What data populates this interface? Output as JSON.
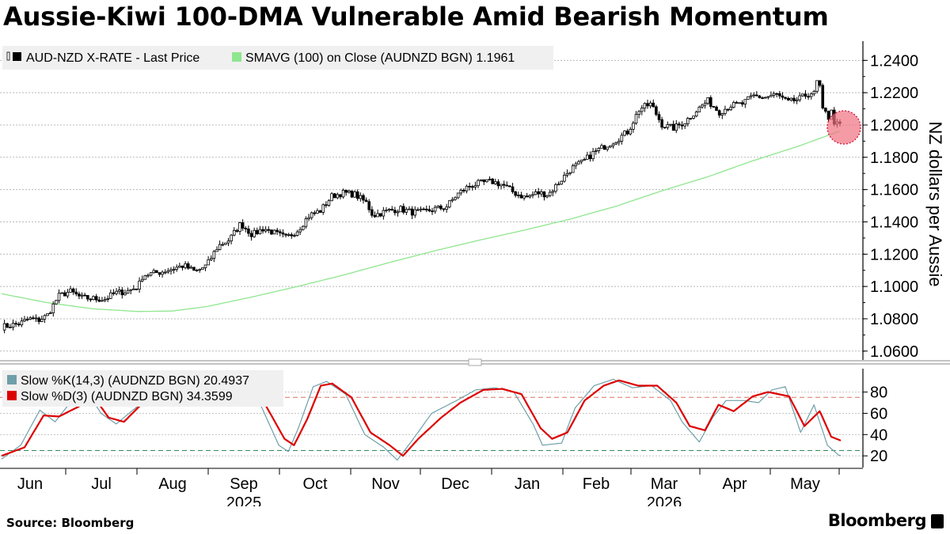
{
  "title": "Aussie-Kiwi 100-DMA Vulnerable Amid Bearish Momentum",
  "source": "Source: Bloomberg",
  "brand": "Bloomberg",
  "chart_data": [
    {
      "type": "candlestick",
      "ylabel": "NZ dollars per Aussie",
      "ylim": [
        1.0545,
        1.248
      ],
      "yticks": [
        "1.0600",
        "1.0800",
        "1.1000",
        "1.1200",
        "1.1400",
        "1.1600",
        "1.1800",
        "1.2000",
        "1.2200",
        "1.2400"
      ],
      "grid": true,
      "legend": "top-left",
      "colors": {
        "price": "#000000",
        "sma": "#8ee68e",
        "highlight": "#f07080"
      },
      "series": [
        {
          "name": "AUD-NZD X-RATE - Last Price",
          "anchors": [
            [
              0,
              1.075
            ],
            [
              8,
              1.077
            ],
            [
              12,
              1.08
            ],
            [
              16,
              1.079
            ],
            [
              20,
              1.082
            ],
            [
              25,
              1.094
            ],
            [
              30,
              1.097
            ],
            [
              35,
              1.093
            ],
            [
              45,
              1.092
            ],
            [
              50,
              1.096
            ],
            [
              55,
              1.097
            ],
            [
              60,
              1.1
            ],
            [
              62,
              1.107
            ],
            [
              70,
              1.109
            ],
            [
              75,
              1.111
            ],
            [
              80,
              1.113
            ],
            [
              85,
              1.109
            ],
            [
              90,
              1.113
            ],
            [
              95,
              1.125
            ],
            [
              100,
              1.129
            ],
            [
              105,
              1.139
            ],
            [
              110,
              1.132
            ],
            [
              115,
              1.136
            ],
            [
              120,
              1.133
            ],
            [
              125,
              1.13
            ],
            [
              130,
              1.135
            ],
            [
              135,
              1.144
            ],
            [
              140,
              1.147
            ],
            [
              145,
              1.156
            ],
            [
              150,
              1.158
            ],
            [
              155,
              1.157
            ],
            [
              160,
              1.152
            ],
            [
              163,
              1.144
            ],
            [
              170,
              1.147
            ],
            [
              175,
              1.148
            ],
            [
              180,
              1.146
            ],
            [
              185,
              1.146
            ],
            [
              190,
              1.148
            ],
            [
              195,
              1.149
            ],
            [
              200,
              1.157
            ],
            [
              205,
              1.162
            ],
            [
              210,
              1.164
            ],
            [
              215,
              1.165
            ],
            [
              220,
              1.163
            ],
            [
              225,
              1.158
            ],
            [
              230,
              1.155
            ],
            [
              235,
              1.158
            ],
            [
              240,
              1.157
            ],
            [
              245,
              1.165
            ],
            [
              250,
              1.173
            ],
            [
              255,
              1.177
            ],
            [
              260,
              1.183
            ],
            [
              265,
              1.187
            ],
            [
              270,
              1.191
            ],
            [
              275,
              1.196
            ],
            [
              280,
              1.21
            ],
            [
              285,
              1.213
            ],
            [
              290,
              1.2
            ],
            [
              295,
              1.198
            ],
            [
              300,
              1.202
            ],
            [
              305,
              1.209
            ],
            [
              310,
              1.215
            ],
            [
              315,
              1.208
            ],
            [
              320,
              1.212
            ],
            [
              325,
              1.213
            ],
            [
              330,
              1.218
            ],
            [
              335,
              1.217
            ],
            [
              340,
              1.219
            ],
            [
              345,
              1.214
            ],
            [
              350,
              1.216
            ],
            [
              355,
              1.22
            ],
            [
              360,
              1.218
            ],
            [
              362,
              1.225
            ],
            [
              364,
              1.21
            ],
            [
              366,
              1.203
            ],
            [
              368,
              1.2
            ]
          ],
          "last_value": ""
        },
        {
          "name": "SMAVG (100)  on Close (AUDNZD BGN) 1.1961",
          "anchors": [
            [
              0,
              1.0955
            ],
            [
              20,
              1.09
            ],
            [
              40,
              1.0862
            ],
            [
              60,
              1.0845
            ],
            [
              75,
              1.0848
            ],
            [
              90,
              1.0875
            ],
            [
              110,
              1.0935
            ],
            [
              130,
              1.1
            ],
            [
              150,
              1.107
            ],
            [
              170,
              1.1147
            ],
            [
              190,
              1.122
            ],
            [
              210,
              1.1287
            ],
            [
              230,
              1.135
            ],
            [
              250,
              1.1418
            ],
            [
              270,
              1.1497
            ],
            [
              290,
              1.1592
            ],
            [
              310,
              1.1678
            ],
            [
              330,
              1.1778
            ],
            [
              350,
              1.1868
            ],
            [
              368,
              1.1961
            ]
          ],
          "last_value": "1.1961"
        }
      ]
    },
    {
      "type": "line",
      "ylim": [
        9,
        102
      ],
      "yticks": [
        "20",
        "40",
        "60",
        "80"
      ],
      "reference_lines": [
        25,
        75
      ],
      "colors": {
        "k": "#6f9fa8",
        "d": "#dd0000"
      },
      "series": [
        {
          "name": "Slow %K(14,3) (AUDNZD BGN)",
          "last_value": "20.4937",
          "anchors": [
            [
              0,
              17
            ],
            [
              10,
              30
            ],
            [
              20,
              63
            ],
            [
              28,
              52
            ],
            [
              35,
              68
            ],
            [
              45,
              80
            ],
            [
              52,
              60
            ],
            [
              60,
              50
            ],
            [
              68,
              62
            ],
            [
              75,
              72
            ],
            [
              90,
              82
            ],
            [
              110,
              88
            ],
            [
              125,
              93
            ],
            [
              135,
              70
            ],
            [
              145,
              30
            ],
            [
              150,
              24
            ],
            [
              155,
              45
            ],
            [
              163,
              85
            ],
            [
              170,
              90
            ],
            [
              180,
              78
            ],
            [
              190,
              40
            ],
            [
              200,
              28
            ],
            [
              207,
              16
            ],
            [
              215,
              35
            ],
            [
              225,
              60
            ],
            [
              238,
              72
            ],
            [
              248,
              82
            ],
            [
              258,
              84
            ],
            [
              268,
              80
            ],
            [
              278,
              50
            ],
            [
              283,
              30
            ],
            [
              293,
              32
            ],
            [
              300,
              65
            ],
            [
              310,
              86
            ],
            [
              320,
              92
            ],
            [
              330,
              84
            ],
            [
              340,
              86
            ],
            [
              350,
              72
            ],
            [
              356,
              52
            ],
            [
              365,
              33
            ],
            [
              372,
              56
            ],
            [
              379,
              72
            ],
            [
              389,
              72
            ],
            [
              396,
              70
            ],
            [
              403,
              82
            ],
            [
              410,
              85
            ],
            [
              418,
              42
            ],
            [
              425,
              68
            ],
            [
              432,
              30
            ],
            [
              438,
              20.4937
            ]
          ]
        },
        {
          "name": "Slow %D(3) (AUDNZD BGN)",
          "last_value": "34.3599",
          "anchors": [
            [
              0,
              20
            ],
            [
              12,
              28
            ],
            [
              22,
              58
            ],
            [
              30,
              57
            ],
            [
              40,
              66
            ],
            [
              48,
              76
            ],
            [
              56,
              56
            ],
            [
              64,
              52
            ],
            [
              74,
              70
            ],
            [
              84,
              83
            ],
            [
              100,
              84
            ],
            [
              115,
              88
            ],
            [
              126,
              92
            ],
            [
              138,
              68
            ],
            [
              148,
              36
            ],
            [
              153,
              30
            ],
            [
              160,
              55
            ],
            [
              167,
              86
            ],
            [
              173,
              88
            ],
            [
              183,
              75
            ],
            [
              193,
              42
            ],
            [
              203,
              30
            ],
            [
              210,
              20
            ],
            [
              218,
              36
            ],
            [
              230,
              56
            ],
            [
              240,
              70
            ],
            [
              252,
              82
            ],
            [
              262,
              83
            ],
            [
              272,
              78
            ],
            [
              282,
              46
            ],
            [
              288,
              36
            ],
            [
              296,
              42
            ],
            [
              305,
              72
            ],
            [
              315,
              86
            ],
            [
              323,
              91
            ],
            [
              333,
              86
            ],
            [
              343,
              86
            ],
            [
              353,
              70
            ],
            [
              360,
              48
            ],
            [
              368,
              44
            ],
            [
              375,
              68
            ],
            [
              383,
              62
            ],
            [
              393,
              76
            ],
            [
              401,
              80
            ],
            [
              412,
              76
            ],
            [
              420,
              48
            ],
            [
              428,
              62
            ],
            [
              434,
              38
            ],
            [
              439,
              34.3599
            ]
          ]
        }
      ]
    }
  ],
  "x_axis": {
    "months": [
      "Jun",
      "Jul",
      "Aug",
      "Sep",
      "Oct",
      "Nov",
      "Dec",
      "Jan",
      "Feb",
      "Mar",
      "Apr",
      "May"
    ],
    "years": [
      "2025",
      "2026"
    ]
  }
}
